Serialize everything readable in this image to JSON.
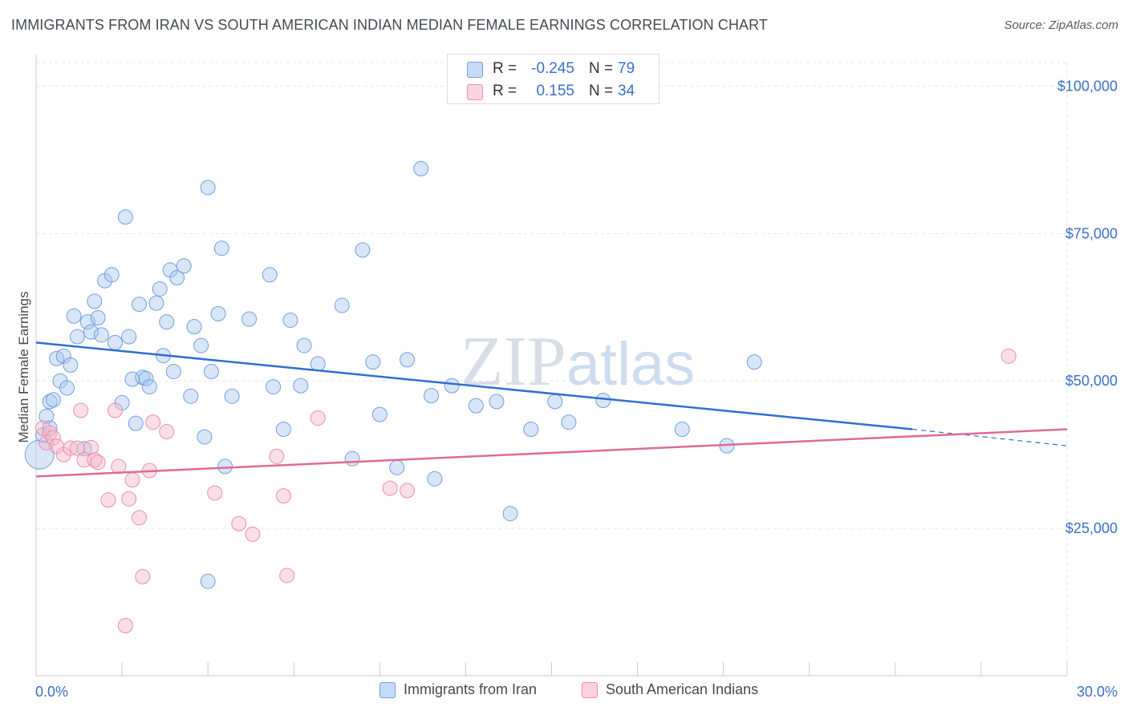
{
  "title": "IMMIGRANTS FROM IRAN VS SOUTH AMERICAN INDIAN MEDIAN FEMALE EARNINGS CORRELATION CHART",
  "source": "Source: ZipAtlas.com",
  "watermark": "ZIPatlas",
  "legend_stats": [
    {
      "r_label": "R =",
      "r_value": "-0.245",
      "n_label": "N =",
      "n_value": "79",
      "color": "#a9c8f0"
    },
    {
      "r_label": "R =",
      "r_value": "0.155",
      "n_label": "N =",
      "n_value": "34",
      "color": "#f5b8ca"
    }
  ],
  "chart_data": {
    "type": "scatter",
    "title": "IMMIGRANTS FROM IRAN VS SOUTH AMERICAN INDIAN MEDIAN FEMALE EARNINGS CORRELATION CHART",
    "xlabel": "",
    "ylabel": "Median Female Earnings",
    "xlim": [
      0,
      30
    ],
    "ylim": [
      0,
      104000
    ],
    "x_tick_labels": [
      "0.0%",
      "30.0%"
    ],
    "y_ticks": [
      25000,
      50000,
      75000,
      100000
    ],
    "y_tick_labels": [
      "$25,000",
      "$50,000",
      "$75,000",
      "$100,000"
    ],
    "grid": true,
    "legend_position": "bottom",
    "series": [
      {
        "name": "Immigrants from Iran",
        "color": "#a9c8f0",
        "stroke": "#6f9fe0",
        "line_color": "#2f6fd0",
        "trend": {
          "x": [
            0,
            25.5
          ],
          "y": [
            56500,
            41800
          ]
        },
        "trend_dashed": {
          "x": [
            25.5,
            30
          ],
          "y": [
            41800,
            39000
          ]
        },
        "points": [
          [
            0.1,
            37500
          ],
          [
            0.3,
            44000
          ],
          [
            0.4,
            46500
          ],
          [
            0.5,
            46800
          ],
          [
            0.6,
            53800
          ],
          [
            0.7,
            50000
          ],
          [
            0.8,
            54200
          ],
          [
            0.9,
            48800
          ],
          [
            1.0,
            52700
          ],
          [
            1.1,
            61000
          ],
          [
            1.2,
            57500
          ],
          [
            1.4,
            38500
          ],
          [
            1.5,
            60000
          ],
          [
            1.6,
            58300
          ],
          [
            1.7,
            63500
          ],
          [
            1.8,
            60700
          ],
          [
            1.9,
            57800
          ],
          [
            2.0,
            67000
          ],
          [
            2.2,
            68000
          ],
          [
            2.3,
            56500
          ],
          [
            2.5,
            46300
          ],
          [
            2.6,
            77800
          ],
          [
            2.7,
            57500
          ],
          [
            2.8,
            50300
          ],
          [
            2.9,
            42800
          ],
          [
            3.0,
            63000
          ],
          [
            3.1,
            50600
          ],
          [
            3.2,
            50400
          ],
          [
            3.3,
            49000
          ],
          [
            3.5,
            63200
          ],
          [
            3.6,
            65600
          ],
          [
            3.7,
            54300
          ],
          [
            3.8,
            60000
          ],
          [
            3.9,
            68800
          ],
          [
            4.0,
            51600
          ],
          [
            4.1,
            67500
          ],
          [
            4.3,
            69500
          ],
          [
            4.5,
            47400
          ],
          [
            4.6,
            59200
          ],
          [
            4.8,
            56000
          ],
          [
            4.9,
            40500
          ],
          [
            5.0,
            82800
          ],
          [
            5.1,
            51600
          ],
          [
            5.3,
            61400
          ],
          [
            5.4,
            72500
          ],
          [
            5.5,
            35500
          ],
          [
            5.7,
            47400
          ],
          [
            6.2,
            60500
          ],
          [
            6.8,
            68000
          ],
          [
            6.9,
            49000
          ],
          [
            7.2,
            41800
          ],
          [
            7.4,
            60300
          ],
          [
            7.7,
            49200
          ],
          [
            7.8,
            56000
          ],
          [
            8.2,
            52900
          ],
          [
            8.9,
            62800
          ],
          [
            9.2,
            36800
          ],
          [
            9.5,
            72200
          ],
          [
            9.8,
            53200
          ],
          [
            10.0,
            44300
          ],
          [
            10.5,
            35300
          ],
          [
            10.8,
            53600
          ],
          [
            11.2,
            86000
          ],
          [
            11.5,
            47500
          ],
          [
            11.6,
            33400
          ],
          [
            12.1,
            49200
          ],
          [
            12.8,
            45800
          ],
          [
            13.4,
            46500
          ],
          [
            13.8,
            27500
          ],
          [
            14.4,
            41800
          ],
          [
            15.1,
            46500
          ],
          [
            15.5,
            43000
          ],
          [
            16.5,
            46700
          ],
          [
            18.8,
            41800
          ],
          [
            20.1,
            39000
          ],
          [
            20.9,
            53200
          ],
          [
            5.0,
            16000
          ],
          [
            0.2,
            40800
          ],
          [
            0.4,
            42000
          ]
        ]
      },
      {
        "name": "South American Indians",
        "color": "#f5b8ca",
        "stroke": "#eb8eac",
        "line_color": "#e06a92",
        "trend": {
          "x": [
            0,
            30
          ],
          "y": [
            33800,
            41800
          ]
        },
        "points": [
          [
            0.2,
            42000
          ],
          [
            0.3,
            39500
          ],
          [
            0.4,
            41200
          ],
          [
            0.5,
            40400
          ],
          [
            0.6,
            38900
          ],
          [
            0.8,
            37500
          ],
          [
            1.0,
            38600
          ],
          [
            1.2,
            38600
          ],
          [
            1.3,
            45000
          ],
          [
            1.4,
            36600
          ],
          [
            1.6,
            38700
          ],
          [
            1.7,
            36600
          ],
          [
            1.8,
            36200
          ],
          [
            2.1,
            29800
          ],
          [
            2.3,
            45000
          ],
          [
            2.4,
            35500
          ],
          [
            2.7,
            30000
          ],
          [
            2.8,
            33200
          ],
          [
            3.0,
            26800
          ],
          [
            3.1,
            16800
          ],
          [
            3.3,
            34800
          ],
          [
            3.4,
            43000
          ],
          [
            3.8,
            41400
          ],
          [
            2.6,
            8500
          ],
          [
            5.2,
            31000
          ],
          [
            5.9,
            25800
          ],
          [
            6.3,
            24000
          ],
          [
            7.0,
            37200
          ],
          [
            7.2,
            30500
          ],
          [
            7.3,
            17000
          ],
          [
            8.2,
            43700
          ],
          [
            10.3,
            31800
          ],
          [
            10.8,
            31400
          ],
          [
            28.3,
            54200
          ]
        ]
      }
    ]
  }
}
